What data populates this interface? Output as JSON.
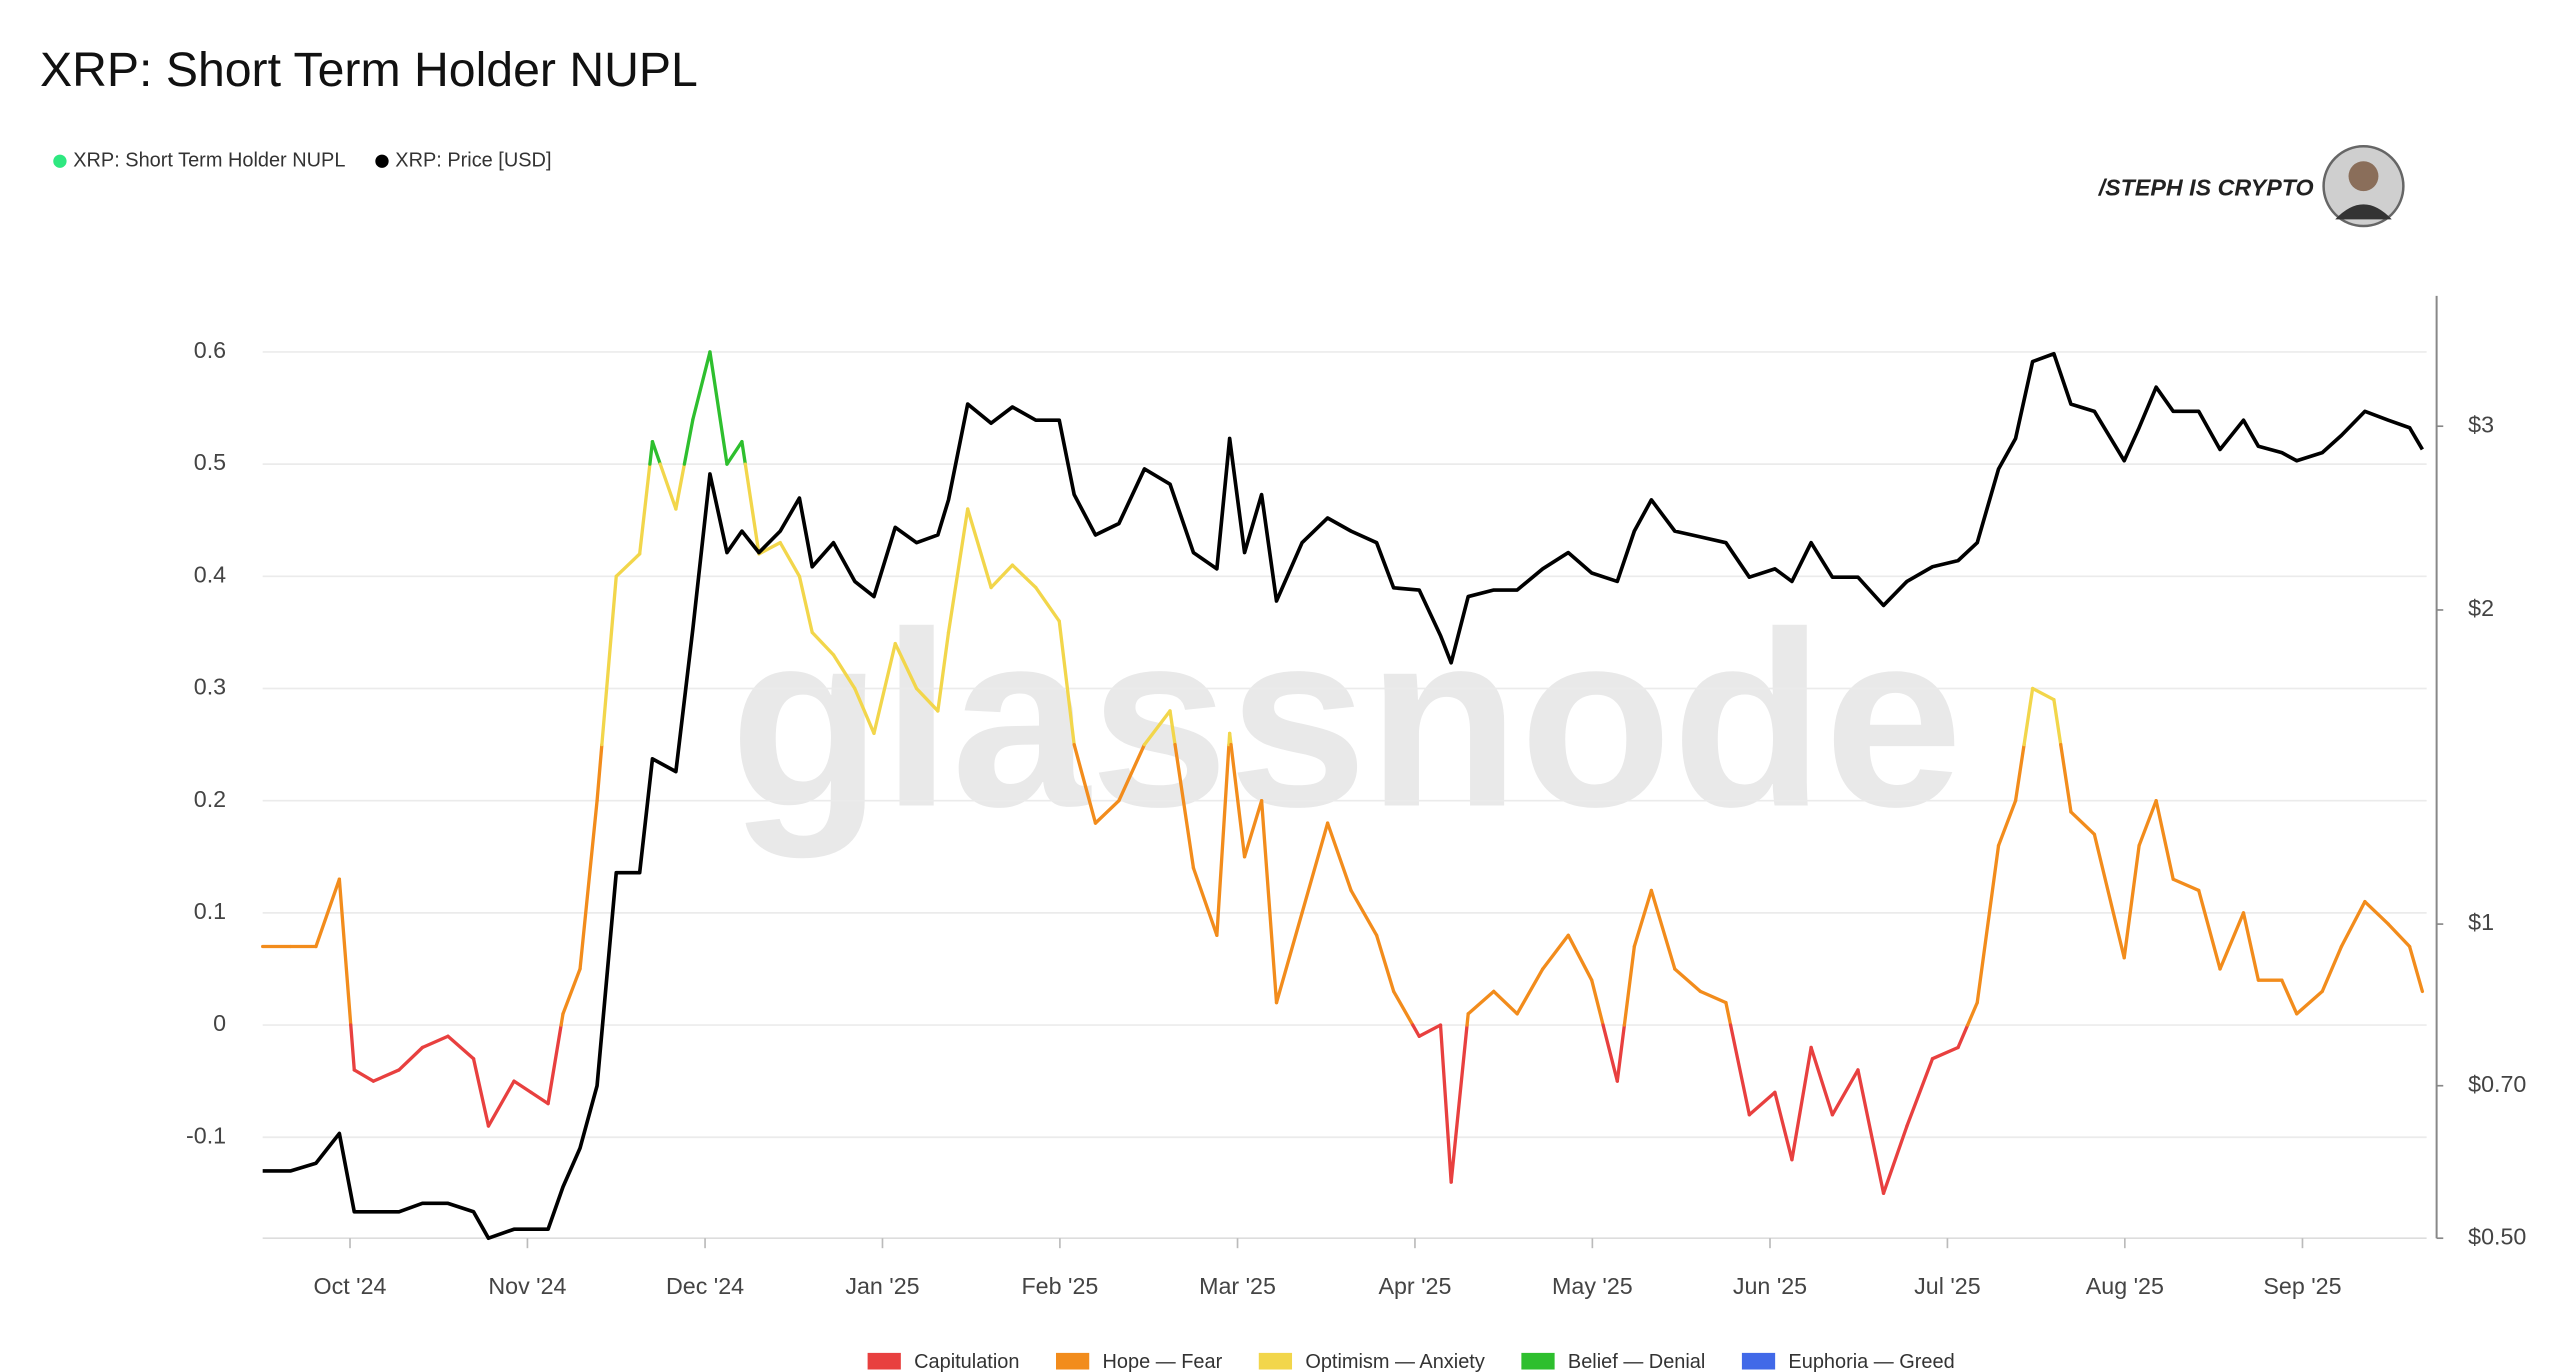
{
  "chart_data": {
    "type": "line",
    "title": "XRP: Short Term Holder NUPL",
    "watermark": "glassnode",
    "branding": "/STEPH IS CRYPTO",
    "x": [
      2024.709,
      2024.722,
      2024.734,
      2024.745,
      2024.752,
      2024.761,
      2024.773,
      2024.784,
      2024.796,
      2024.808,
      2024.815,
      2024.827,
      2024.835,
      2024.843,
      2024.85,
      2024.858,
      2024.866,
      2024.875,
      2024.886,
      2024.892,
      2024.903,
      2024.911,
      2024.919,
      2024.927,
      2024.934,
      2024.942,
      2024.952,
      2024.961,
      2024.967,
      2024.977,
      2024.987,
      2024.996,
      2025.006,
      2025.016,
      2025.026,
      2025.031,
      2025.04,
      2025.051,
      2025.061,
      2025.072,
      2025.083,
      2025.09,
      2025.1,
      2025.111,
      2025.123,
      2025.135,
      2025.146,
      2025.157,
      2025.163,
      2025.17,
      2025.178,
      2025.185,
      2025.197,
      2025.209,
      2025.22,
      2025.232,
      2025.24,
      2025.252,
      2025.262,
      2025.267,
      2025.275,
      2025.287,
      2025.298,
      2025.31,
      2025.322,
      2025.333,
      2025.345,
      2025.353,
      2025.361,
      2025.372,
      2025.384,
      2025.396,
      2025.407,
      2025.419,
      2025.427,
      2025.436,
      2025.446,
      2025.458,
      2025.47,
      2025.481,
      2025.493,
      2025.505,
      2025.514,
      2025.524,
      2025.532,
      2025.54,
      2025.55,
      2025.558,
      2025.569,
      2025.583,
      2025.59,
      2025.598,
      2025.606,
      2025.618,
      2025.628,
      2025.639,
      2025.646,
      2025.657,
      2025.664,
      2025.676,
      2025.685,
      2025.696,
      2025.707,
      2025.717,
      2025.723
    ],
    "series": [
      {
        "name": "XRP: Short Term Holder NUPL",
        "color": "#2ee880",
        "values": [
          0.07,
          0.07,
          0.07,
          0.13,
          -0.04,
          -0.05,
          -0.04,
          -0.02,
          -0.01,
          -0.03,
          -0.09,
          -0.05,
          -0.06,
          -0.07,
          0.01,
          0.05,
          0.2,
          0.4,
          0.42,
          0.52,
          0.46,
          0.54,
          0.6,
          0.5,
          0.52,
          0.42,
          0.43,
          0.4,
          0.35,
          0.33,
          0.3,
          0.26,
          0.34,
          0.3,
          0.28,
          0.35,
          0.46,
          0.39,
          0.41,
          0.39,
          0.36,
          0.25,
          0.18,
          0.2,
          0.25,
          0.28,
          0.14,
          0.08,
          0.26,
          0.15,
          0.2,
          0.02,
          0.1,
          0.18,
          0.12,
          0.08,
          0.03,
          -0.01,
          0.0,
          -0.14,
          0.01,
          0.03,
          0.01,
          0.05,
          0.08,
          0.04,
          -0.05,
          0.07,
          0.12,
          0.05,
          0.03,
          0.02,
          -0.08,
          -0.06,
          -0.12,
          -0.02,
          -0.08,
          -0.04,
          -0.15,
          -0.09,
          -0.03,
          -0.02,
          0.02,
          0.16,
          0.2,
          0.3,
          0.29,
          0.19,
          0.17,
          0.06,
          0.16,
          0.2,
          0.13,
          0.12,
          0.05,
          0.1,
          0.04,
          0.04,
          0.01,
          0.03,
          0.07,
          0.11,
          0.09,
          0.07,
          0.03
        ]
      },
      {
        "name": "XRP: Price [USD]",
        "color": "#000000",
        "axis": "y2",
        "values": [
          0.58,
          0.58,
          0.59,
          0.63,
          0.53,
          0.53,
          0.53,
          0.54,
          0.54,
          0.53,
          0.5,
          0.51,
          0.51,
          0.51,
          0.56,
          0.61,
          0.7,
          1.12,
          1.12,
          1.44,
          1.4,
          1.92,
          2.7,
          2.27,
          2.38,
          2.27,
          2.38,
          2.56,
          2.2,
          2.32,
          2.13,
          2.06,
          2.4,
          2.32,
          2.36,
          2.55,
          3.15,
          3.02,
          3.13,
          3.04,
          3.04,
          2.58,
          2.36,
          2.42,
          2.73,
          2.64,
          2.27,
          2.19,
          2.92,
          2.27,
          2.58,
          2.04,
          2.32,
          2.45,
          2.38,
          2.32,
          2.1,
          2.09,
          1.89,
          1.78,
          2.06,
          2.09,
          2.09,
          2.19,
          2.27,
          2.17,
          2.13,
          2.38,
          2.55,
          2.38,
          2.35,
          2.32,
          2.15,
          2.19,
          2.13,
          2.32,
          2.15,
          2.15,
          2.02,
          2.13,
          2.2,
          2.23,
          2.32,
          2.73,
          2.92,
          3.46,
          3.52,
          3.15,
          3.1,
          2.78,
          2.99,
          3.27,
          3.1,
          3.1,
          2.85,
          3.04,
          2.87,
          2.83,
          2.78,
          2.83,
          2.94,
          3.1,
          3.04,
          2.99,
          2.85
        ]
      }
    ],
    "zones": [
      {
        "name": "Capitulation",
        "color": "#e8403f"
      },
      {
        "name": "Hope — Fear",
        "color": "#f28c1c"
      },
      {
        "name": "Optimism — Anxiety",
        "color": "#f2d64b"
      },
      {
        "name": "Belief — Denial",
        "color": "#2ebf2e"
      },
      {
        "name": "Euphoria — Greed",
        "color": "#4169e8"
      }
    ],
    "zone_breaks": [
      0,
      0.25,
      0.5,
      0.75
    ],
    "xlim": [
      2024.709,
      2025.725
    ],
    "xticks": [
      {
        "value": 2024.75,
        "label": "Oct '24"
      },
      {
        "value": 2024.8333,
        "label": "Nov '24"
      },
      {
        "value": 2024.9167,
        "label": "Dec '24"
      },
      {
        "value": 2025.0,
        "label": "Jan '25"
      },
      {
        "value": 2025.0833,
        "label": "Feb '25"
      },
      {
        "value": 2025.1667,
        "label": "Mar '25"
      },
      {
        "value": 2025.25,
        "label": "Apr '25"
      },
      {
        "value": 2025.3333,
        "label": "May '25"
      },
      {
        "value": 2025.4167,
        "label": "Jun '25"
      },
      {
        "value": 2025.5,
        "label": "Jul '25"
      },
      {
        "value": 2025.5833,
        "label": "Aug '25"
      },
      {
        "value": 2025.6667,
        "label": "Sep '25"
      }
    ],
    "ylim": [
      -0.19,
      0.65
    ],
    "yticks": [
      -0.1,
      0,
      0.1,
      0.2,
      0.3,
      0.4,
      0.5,
      0.6
    ],
    "y2lim": [
      0.5,
      4
    ],
    "y2scale": "log",
    "y2ticks": [
      {
        "value": 0.5,
        "label": "$0.50"
      },
      {
        "value": 0.7,
        "label": "$0.70"
      },
      {
        "value": 1,
        "label": "$1"
      },
      {
        "value": 2,
        "label": "$2"
      },
      {
        "value": 3,
        "label": "$3"
      }
    ],
    "grid": true
  }
}
